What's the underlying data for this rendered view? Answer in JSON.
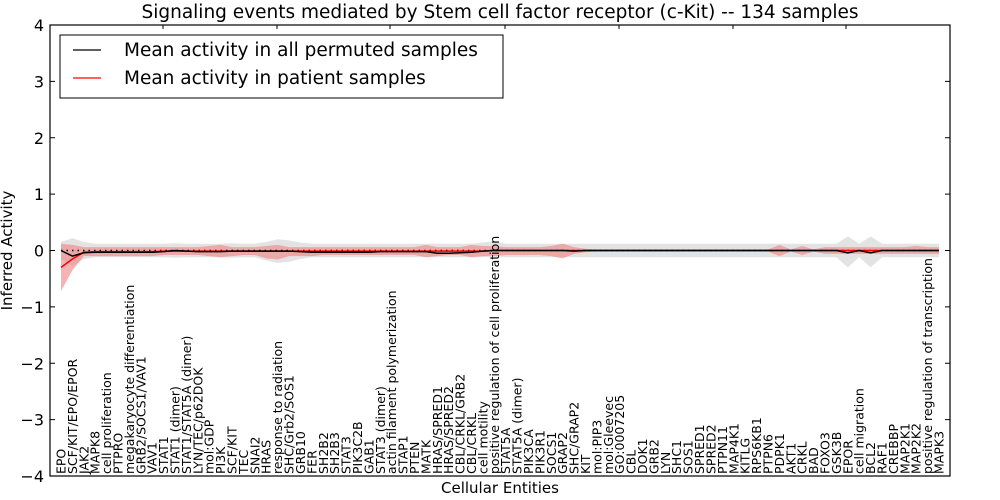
{
  "chart_data": {
    "type": "line",
    "title": "Signaling events mediated by Stem cell factor receptor (c-Kit) -- 134 samples",
    "xlabel": "Cellular Entities",
    "ylabel": "Inferred Activity",
    "ylim": [
      -4,
      4
    ],
    "yticks": [
      -4,
      -3,
      -2,
      -1,
      0,
      1,
      2,
      3,
      4
    ],
    "ytick_labels": [
      "−4",
      "−3",
      "−2",
      "−1",
      "0",
      "1",
      "2",
      "3",
      "4"
    ],
    "grid": false,
    "legend_position": "top-left",
    "categories": [
      "EPO",
      "SCF/KIT/EPO/EPOR",
      "JAK2",
      "MAPK8",
      "cell proliferation",
      "PTPRO",
      "megakaryocyte differentiation",
      "GRB2/SOCS1/VAV1",
      "VAV1",
      "STAT1",
      "STAT1 (dimer)",
      "STAT1/STAT5A (dimer)",
      "LYN/TEC/p62DOK",
      "mol:GDP",
      "PI3K",
      "SCF/KIT",
      "TEC",
      "SNAI2",
      "HRAS",
      "response to radiation",
      "SHC/Grb2/SOS1",
      "GRB10",
      "FER",
      "SH2B2",
      "SH2B3",
      "STAT3",
      "PIK3C2B",
      "GAB1",
      "STAT3 (dimer)",
      "actin filament polymerization",
      "STAP1",
      "PTEN",
      "MATK",
      "HRAS/SPRED1",
      "HRAS/SPRED2",
      "CBL/CRKL/GRB2",
      "CBL/CRKL",
      "cell motility",
      "positive regulation of cell proliferation",
      "STAT5A",
      "STAT5A (dimer)",
      "PIK3CA",
      "PIK3R1",
      "SOCS1",
      "GRAP2",
      "SHC/GRAP2",
      "KIT",
      "mol:PIP3",
      "mol:Gleevec",
      "GO:0007205",
      "CBL",
      "DOK1",
      "GRB2",
      "LYN",
      "SHC1",
      "SOS1",
      "SPRED1",
      "SPRED2",
      "PTPN11",
      "MAP4K1",
      "KITLG",
      "RPS6KB1",
      "PTPN6",
      "PDPK1",
      "AKT1",
      "CRKL",
      "BAD",
      "FOXO3",
      "GSK3B",
      "EPOR",
      "cell migration",
      "BCL2",
      "RAF1",
      "CREBBP",
      "MAP2K1",
      "MAP2K2",
      "positive regulation of transcription",
      "MAPK3"
    ],
    "series": [
      {
        "name": "Mean activity in all permuted samples",
        "color": "#000000",
        "values": [
          0.0,
          -0.1,
          -0.04,
          -0.03,
          -0.03,
          -0.03,
          -0.03,
          -0.03,
          -0.03,
          -0.02,
          0.0,
          -0.01,
          -0.02,
          -0.02,
          -0.02,
          -0.01,
          -0.01,
          -0.01,
          -0.01,
          -0.01,
          -0.01,
          -0.02,
          -0.03,
          -0.03,
          -0.03,
          -0.03,
          -0.03,
          -0.03,
          -0.02,
          -0.02,
          -0.02,
          -0.02,
          -0.02,
          -0.05,
          -0.05,
          -0.04,
          -0.03,
          -0.01,
          0.0,
          0.0,
          0.0,
          0.0,
          0.0,
          0.0,
          0.0,
          -0.01,
          0.0,
          0.0,
          0.0,
          0.0,
          0.0,
          0.0,
          0.0,
          0.0,
          0.0,
          0.0,
          0.0,
          0.0,
          0.0,
          0.0,
          0.0,
          0.0,
          0.0,
          0.0,
          0.0,
          0.0,
          0.0,
          0.0,
          0.0,
          -0.04,
          0.0,
          -0.04,
          0.0,
          0.0,
          0.0,
          0.0,
          0.0,
          0.0
        ],
        "band_lower": [
          -0.15,
          -0.28,
          -0.15,
          -0.12,
          -0.12,
          -0.12,
          -0.12,
          -0.12,
          -0.12,
          -0.12,
          -0.13,
          -0.12,
          -0.12,
          -0.12,
          -0.12,
          -0.13,
          -0.12,
          -0.12,
          -0.18,
          -0.22,
          -0.2,
          -0.15,
          -0.12,
          -0.12,
          -0.12,
          -0.12,
          -0.12,
          -0.12,
          -0.12,
          -0.12,
          -0.12,
          -0.12,
          -0.12,
          -0.12,
          -0.12,
          -0.12,
          -0.12,
          -0.12,
          -0.12,
          -0.12,
          -0.12,
          -0.12,
          -0.12,
          -0.12,
          -0.12,
          -0.12,
          -0.12,
          -0.12,
          -0.12,
          -0.12,
          -0.12,
          -0.12,
          -0.12,
          -0.12,
          -0.12,
          -0.12,
          -0.12,
          -0.12,
          -0.12,
          -0.12,
          -0.12,
          -0.12,
          -0.12,
          -0.12,
          -0.12,
          -0.12,
          -0.12,
          -0.12,
          -0.12,
          -0.3,
          -0.12,
          -0.3,
          -0.12,
          -0.12,
          -0.12,
          -0.12,
          -0.12,
          -0.12
        ],
        "band_upper": [
          0.15,
          0.22,
          0.15,
          0.12,
          0.12,
          0.12,
          0.12,
          0.12,
          0.12,
          0.12,
          0.13,
          0.12,
          0.12,
          0.12,
          0.12,
          0.13,
          0.12,
          0.12,
          0.15,
          0.2,
          0.18,
          0.14,
          0.12,
          0.12,
          0.12,
          0.12,
          0.12,
          0.12,
          0.12,
          0.12,
          0.12,
          0.12,
          0.12,
          0.12,
          0.12,
          0.12,
          0.12,
          0.14,
          0.17,
          0.12,
          0.12,
          0.12,
          0.12,
          0.12,
          0.12,
          0.12,
          0.12,
          0.12,
          0.12,
          0.12,
          0.12,
          0.12,
          0.12,
          0.12,
          0.12,
          0.12,
          0.12,
          0.12,
          0.12,
          0.12,
          0.12,
          0.12,
          0.12,
          0.12,
          0.12,
          0.12,
          0.12,
          0.12,
          0.12,
          0.25,
          0.12,
          0.25,
          0.12,
          0.12,
          0.12,
          0.12,
          0.12,
          0.12
        ]
      },
      {
        "name": "Mean activity in patient samples",
        "color": "#ff0000",
        "values": [
          -0.3,
          -0.15,
          -0.03,
          -0.02,
          -0.02,
          -0.02,
          -0.02,
          -0.02,
          -0.02,
          -0.01,
          -0.01,
          -0.01,
          -0.01,
          -0.01,
          -0.01,
          -0.01,
          -0.01,
          -0.01,
          -0.01,
          -0.01,
          -0.01,
          -0.01,
          -0.01,
          -0.01,
          -0.01,
          -0.01,
          -0.01,
          -0.01,
          -0.01,
          -0.01,
          -0.01,
          -0.01,
          -0.01,
          -0.01,
          -0.01,
          -0.01,
          -0.01,
          -0.01,
          0.0,
          0.0,
          0.0,
          0.0,
          0.0,
          0.0,
          0.0,
          0.0,
          0.0,
          0.0,
          0.0,
          0.0,
          0.0,
          0.0,
          0.0,
          0.0,
          0.0,
          0.0,
          0.0,
          0.0,
          0.0,
          0.0,
          0.0,
          0.0,
          0.0,
          0.0,
          0.0,
          0.0,
          0.0,
          0.0,
          0.0,
          0.0,
          0.0,
          0.0,
          0.0,
          0.0,
          0.0,
          0.0,
          0.0,
          0.0
        ],
        "band_lower": [
          -0.72,
          -0.35,
          -0.1,
          -0.1,
          -0.1,
          -0.1,
          -0.1,
          -0.1,
          -0.1,
          -0.08,
          -0.08,
          -0.08,
          -0.08,
          -0.1,
          -0.12,
          -0.1,
          -0.08,
          -0.08,
          -0.14,
          -0.16,
          -0.1,
          -0.1,
          -0.1,
          -0.08,
          -0.08,
          -0.08,
          -0.08,
          -0.08,
          -0.08,
          -0.08,
          -0.08,
          -0.08,
          -0.12,
          -0.1,
          -0.08,
          -0.08,
          -0.12,
          -0.1,
          -0.1,
          -0.08,
          -0.08,
          -0.08,
          -0.08,
          -0.1,
          -0.14,
          -0.06,
          -0.03,
          -0.02,
          -0.02,
          -0.02,
          -0.02,
          -0.02,
          -0.02,
          -0.02,
          -0.02,
          -0.02,
          -0.02,
          -0.02,
          -0.02,
          -0.02,
          -0.02,
          -0.02,
          -0.02,
          -0.1,
          -0.02,
          -0.08,
          -0.02,
          -0.06,
          -0.06,
          -0.06,
          -0.06,
          -0.06,
          -0.06,
          -0.06,
          -0.06,
          -0.06,
          -0.06,
          -0.06
        ],
        "band_upper": [
          0.12,
          0.1,
          0.06,
          0.06,
          0.06,
          0.06,
          0.06,
          0.06,
          0.06,
          0.06,
          0.06,
          0.06,
          0.06,
          0.08,
          0.1,
          0.06,
          0.06,
          0.06,
          0.08,
          0.1,
          0.06,
          0.06,
          0.06,
          0.06,
          0.06,
          0.06,
          0.06,
          0.06,
          0.06,
          0.06,
          0.06,
          0.06,
          0.1,
          0.06,
          0.06,
          0.06,
          0.1,
          0.08,
          0.08,
          0.06,
          0.06,
          0.06,
          0.06,
          0.08,
          0.12,
          0.06,
          0.03,
          0.02,
          0.02,
          0.02,
          0.02,
          0.02,
          0.02,
          0.02,
          0.02,
          0.02,
          0.02,
          0.02,
          0.02,
          0.02,
          0.02,
          0.02,
          0.02,
          0.1,
          0.02,
          0.08,
          0.02,
          0.06,
          0.06,
          0.06,
          0.06,
          0.06,
          0.06,
          0.06,
          0.06,
          0.08,
          0.06,
          0.06
        ]
      }
    ],
    "reference_line": {
      "y": 0,
      "style": "dotted",
      "color": "#000000"
    },
    "band_colors": {
      "permuted": "#cccccc",
      "patient": "#f08080"
    }
  }
}
